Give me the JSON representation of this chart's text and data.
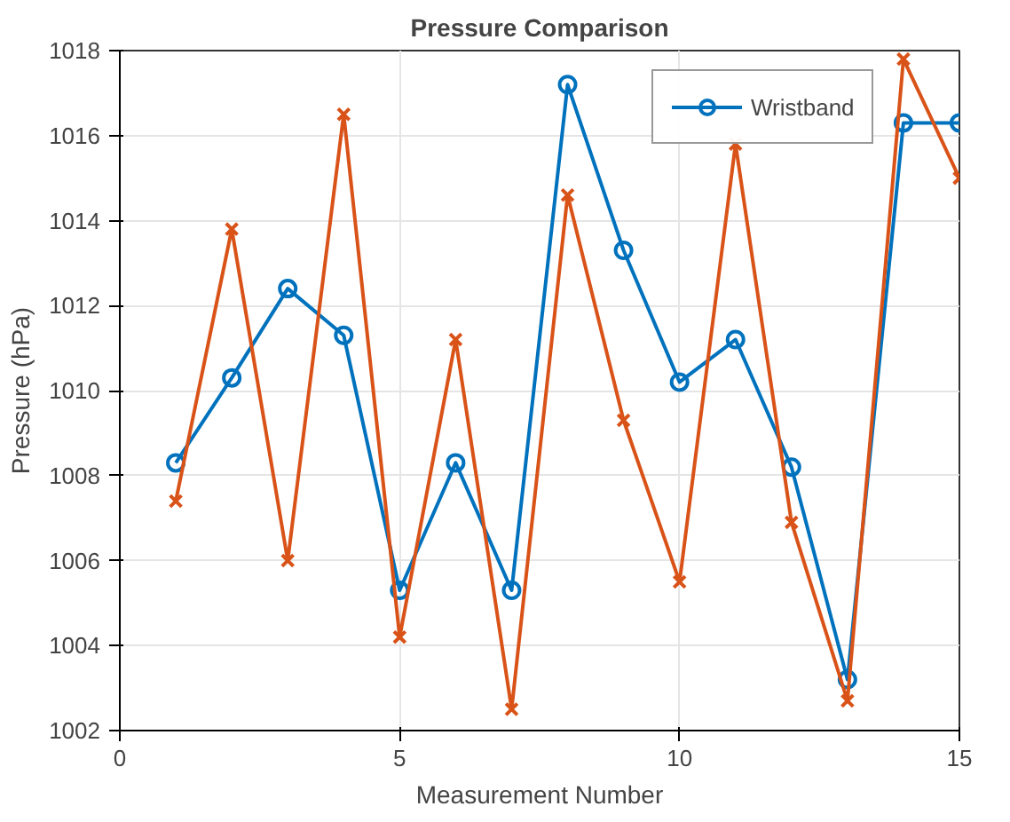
{
  "chart_data": {
    "type": "line",
    "title": "Pressure Comparison",
    "xlabel": "Measurement Number",
    "ylabel": "Pressure (hPa)",
    "x": [
      1,
      2,
      3,
      4,
      5,
      6,
      7,
      8,
      9,
      10,
      11,
      12,
      13,
      14,
      15
    ],
    "series": [
      {
        "name": "Wristband",
        "color": "#0072bd",
        "marker": "circle",
        "values": [
          1008.3,
          1010.3,
          1012.4,
          1011.3,
          1005.3,
          1008.3,
          1005.3,
          1017.2,
          1013.3,
          1010.2,
          1011.2,
          1008.2,
          1003.2,
          1016.3,
          1016.3
        ]
      },
      {
        "color": "#d95319",
        "marker": "cross",
        "values": [
          1007.4,
          1013.8,
          1006.0,
          1016.5,
          1004.2,
          1011.2,
          1002.5,
          1014.6,
          1009.3,
          1005.5,
          1015.8,
          1006.9,
          1002.7,
          1017.8,
          1015.0
        ]
      }
    ],
    "xlim": [
      0,
      15
    ],
    "ylim": [
      1002,
      1018
    ],
    "xticks": [
      0,
      5,
      10,
      15
    ],
    "yticks": [
      1002,
      1004,
      1006,
      1008,
      1010,
      1012,
      1014,
      1016,
      1018
    ],
    "grid": true,
    "legend": "top right",
    "line_style": "solid"
  }
}
